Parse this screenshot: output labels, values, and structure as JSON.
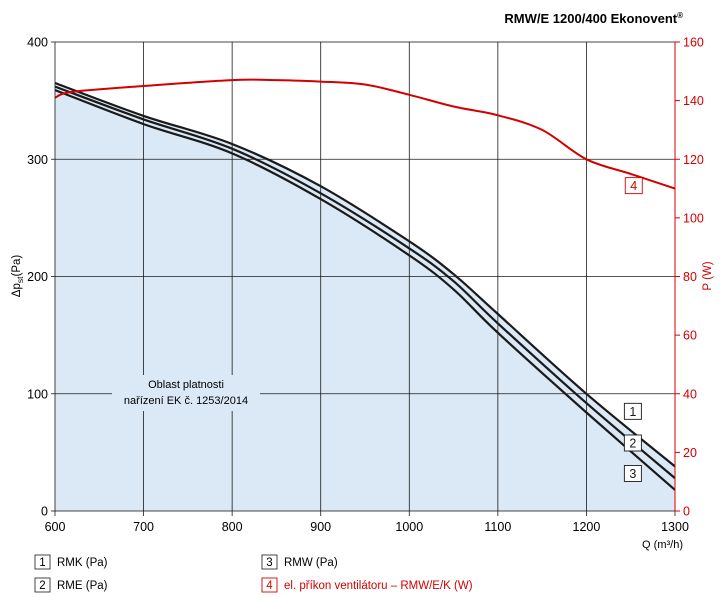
{
  "chart_data": {
    "type": "line",
    "title": "RMW/E 1200/400 Ekonovent",
    "title_mark": "®",
    "xlabel": "Q (m³/h)",
    "ylabel_main": "Δp",
    "ylabel_sub": "st",
    "ylabel_unit": "(Pa)",
    "y2label": "P (W)",
    "xlim": [
      600,
      1300
    ],
    "ylim": [
      0,
      400
    ],
    "y2lim": [
      0,
      160
    ],
    "x_ticks": [
      600,
      700,
      800,
      900,
      1000,
      1100,
      1200,
      1300
    ],
    "y_ticks": [
      0,
      100,
      200,
      300,
      400
    ],
    "y2_ticks": [
      0,
      20,
      40,
      60,
      80,
      100,
      120,
      140,
      160
    ],
    "grid": true,
    "annotation_region": {
      "line1": "Oblast platnosti",
      "line2": "nařízení EK č. 1253/2014"
    },
    "series": [
      {
        "id": "1",
        "name": "RMK (Pa)",
        "axis": "left",
        "color": "#1a1a1a",
        "x": [
          600,
          700,
          800,
          900,
          1000,
          1050,
          1100,
          1200,
          1300
        ],
        "y": [
          365,
          337,
          313,
          277,
          230,
          202,
          168,
          100,
          38
        ]
      },
      {
        "id": "2",
        "name": "RME (Pa)",
        "axis": "left",
        "color": "#1a1a1a",
        "x": [
          600,
          700,
          800,
          900,
          1000,
          1050,
          1100,
          1200,
          1300
        ],
        "y": [
          362,
          334,
          309,
          271,
          224,
          196,
          160,
          92,
          28
        ]
      },
      {
        "id": "3",
        "name": "RMW (Pa)",
        "axis": "left",
        "color": "#1a1a1a",
        "x": [
          600,
          700,
          800,
          900,
          1000,
          1050,
          1100,
          1200,
          1300
        ],
        "y": [
          359,
          330,
          305,
          266,
          218,
          189,
          152,
          84,
          18
        ]
      },
      {
        "id": "4",
        "name": "el. příkon ventilátoru – RMW/E/K (W)",
        "axis": "right",
        "color": "#d40000",
        "x": [
          600,
          620,
          700,
          800,
          850,
          900,
          950,
          1000,
          1050,
          1100,
          1150,
          1200,
          1250,
          1300
        ],
        "y": [
          141,
          143,
          145,
          147,
          147,
          146.5,
          145.5,
          142,
          138,
          135,
          130,
          120,
          115,
          110
        ]
      }
    ],
    "series_tags": [
      {
        "id": "1",
        "x": 1253,
        "y": 85
      },
      {
        "id": "2",
        "x": 1253,
        "y": 58
      },
      {
        "id": "3",
        "x": 1253,
        "y": 32
      },
      {
        "id": "4",
        "x": 1254,
        "y": 111,
        "axis": "right"
      }
    ],
    "legend": {
      "placement": "bottom"
    }
  }
}
